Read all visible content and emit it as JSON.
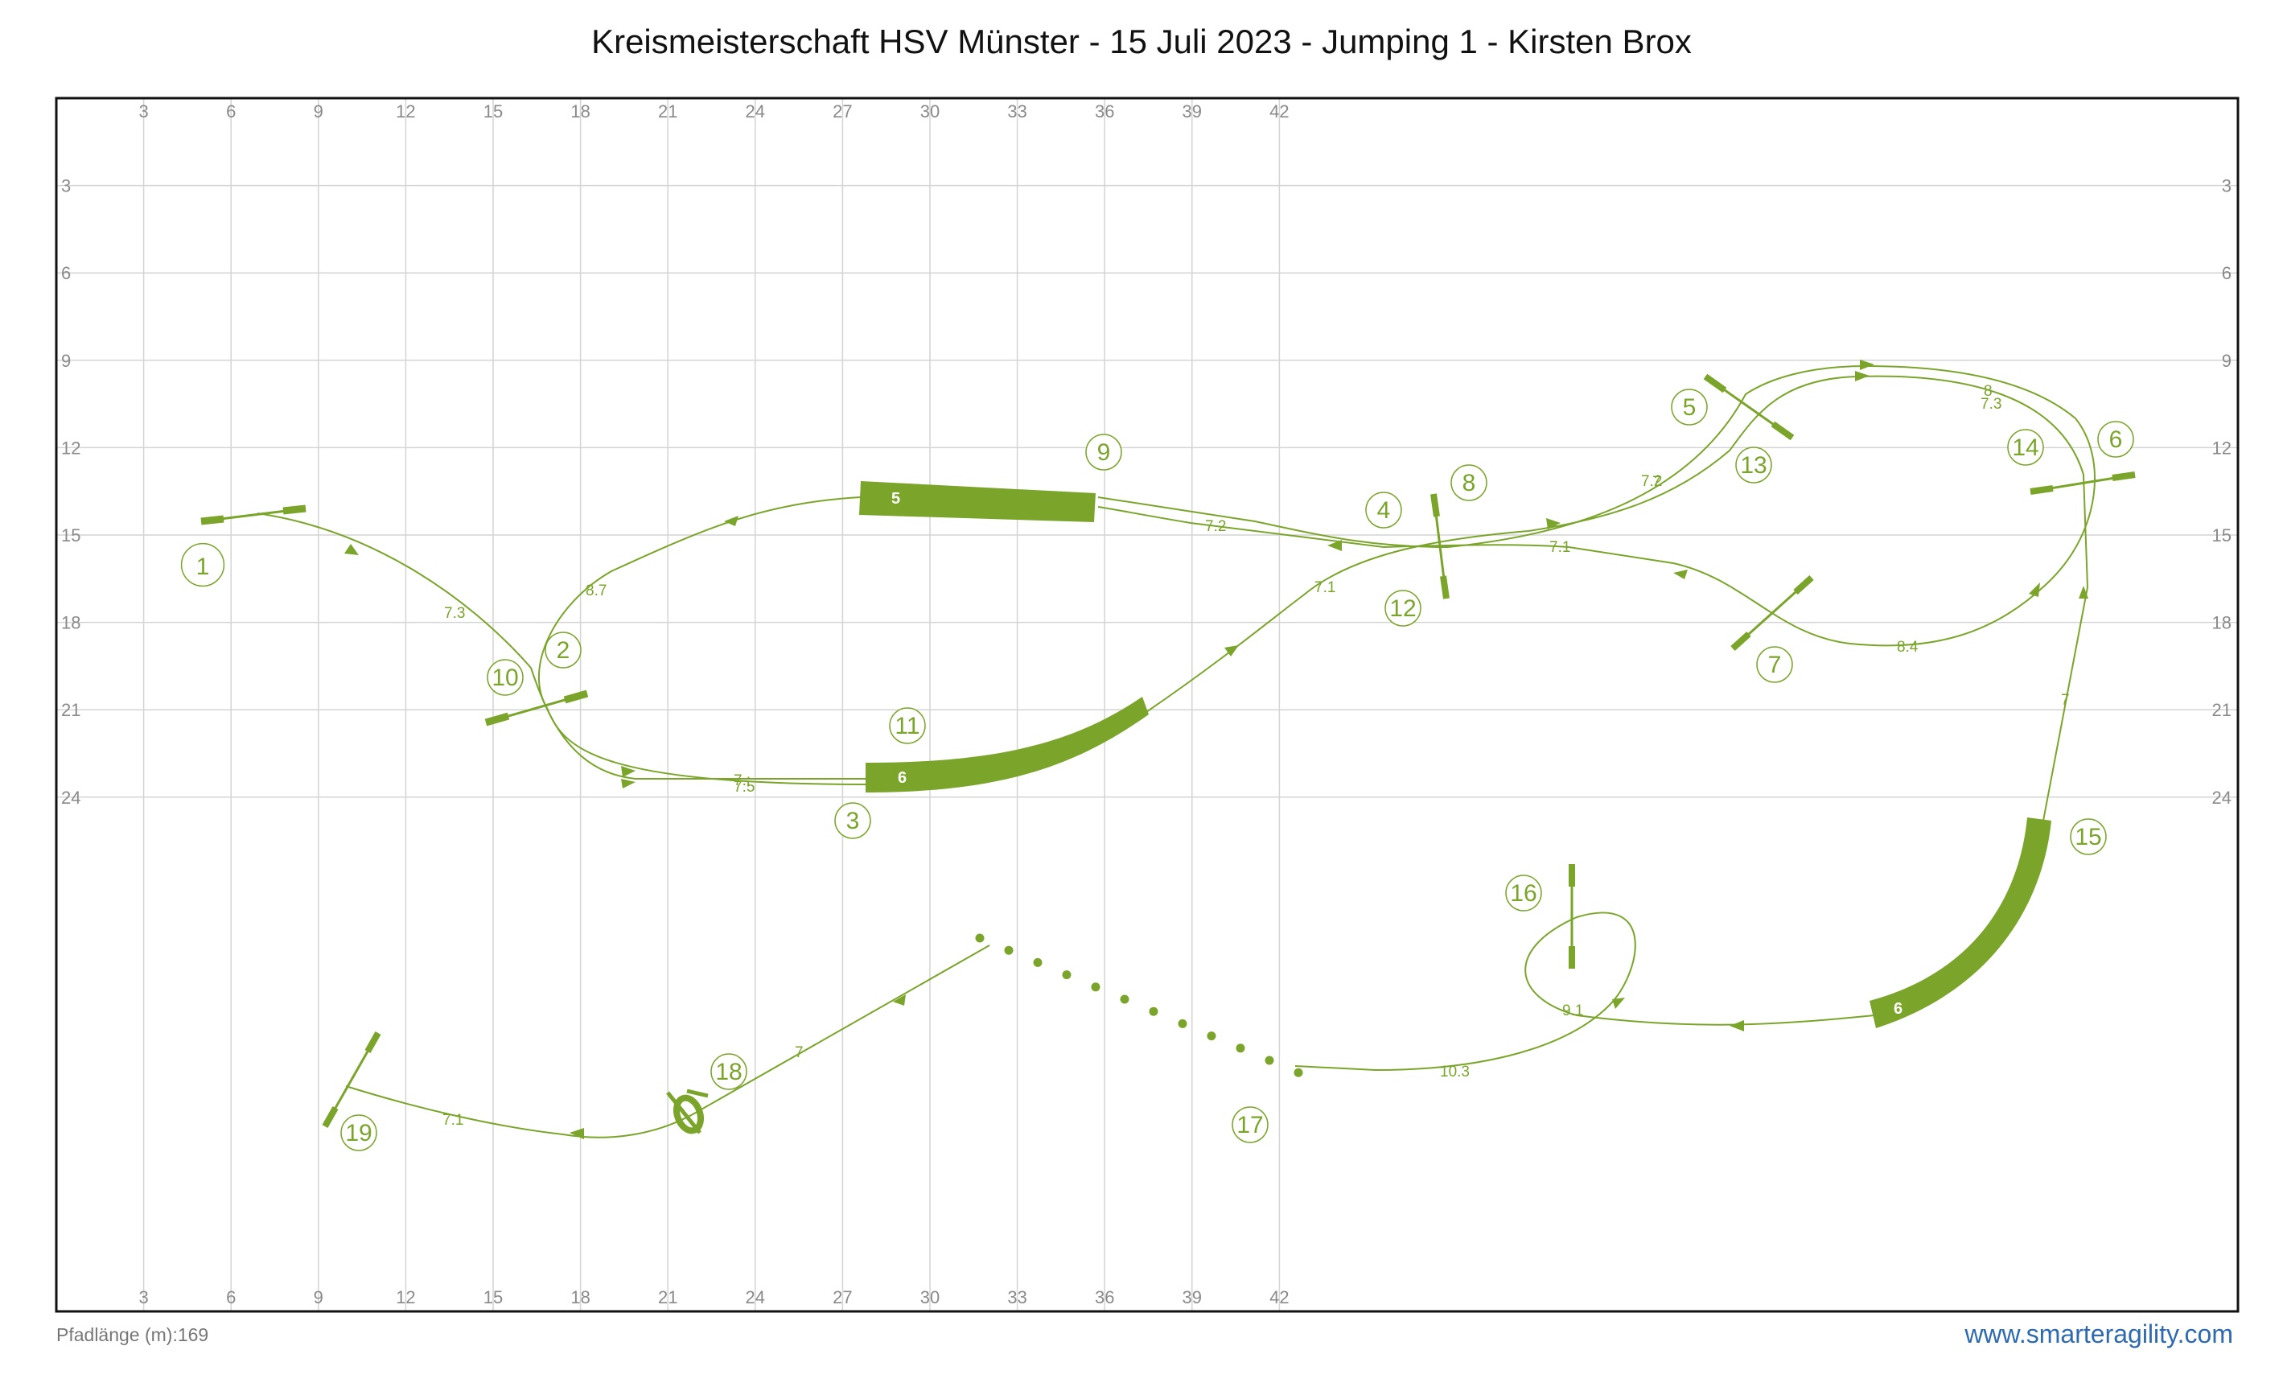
{
  "title": "Kreismeisterschaft HSV Münster - 15 Juli 2023 - Jumping 1 - Kirsten Brox",
  "path_length": "Pfadlänge (m):169",
  "brand": "www.smarteragility.com",
  "colors": {
    "accent": "#7aa52a",
    "grid": "#d4d4d4",
    "border": "#111111",
    "brand": "#2d6ab0"
  },
  "x_ticks": [
    "3",
    "6",
    "9",
    "12",
    "15",
    "18",
    "21",
    "24",
    "27",
    "30",
    "33",
    "36",
    "39",
    "42"
  ],
  "y_ticks": [
    "3",
    "6",
    "9",
    "12",
    "15",
    "18",
    "21",
    "24"
  ],
  "obstacle_numbers": [
    "1",
    "2",
    "3",
    "4",
    "5",
    "6",
    "7",
    "8",
    "9",
    "10",
    "11",
    "12",
    "13",
    "14",
    "15",
    "16",
    "17",
    "18",
    "19"
  ],
  "tunnel_labels": {
    "t9": "5",
    "t11": "6",
    "t15": "6"
  },
  "distances": [
    "7.3",
    "8.7",
    "7.5",
    "7.:",
    "7.2",
    "7.1",
    "7.1",
    "7.2",
    "7",
    "8",
    "7.3",
    "8.4",
    "7",
    "9.1",
    "10.3",
    "7",
    "7.1"
  ]
}
